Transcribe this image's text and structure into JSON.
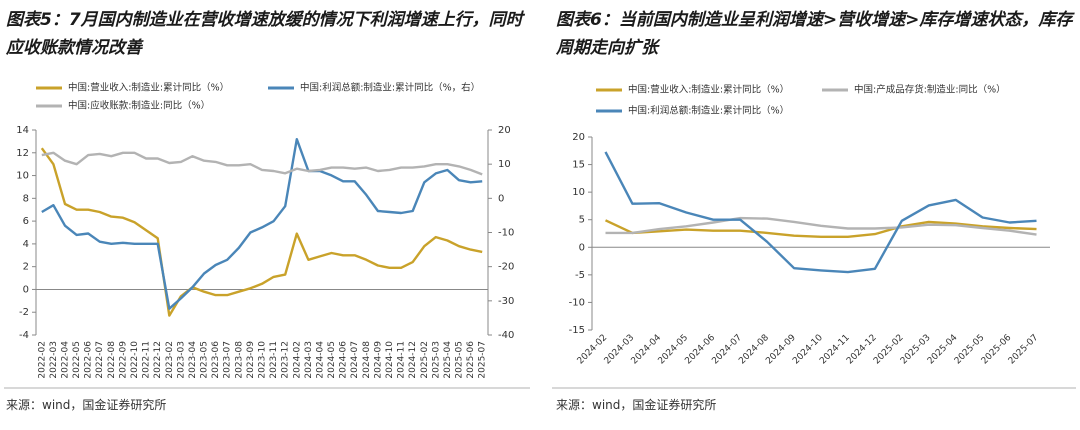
{
  "chart_data": [
    {
      "type": "line",
      "title": "图表5：7月国内制造业在营收增速放缓的情况下利润增速上行，同时应收账款情况改善",
      "source": "来源：wind，国金证券研究所",
      "categories": [
        "2022-02",
        "2022-03",
        "2022-04",
        "2022-05",
        "2022-06",
        "2022-07",
        "2022-08",
        "2022-09",
        "2022-10",
        "2022-11",
        "2022-12",
        "2023-02",
        "2023-03",
        "2023-04",
        "2023-05",
        "2023-06",
        "2023-07",
        "2023-08",
        "2023-09",
        "2023-10",
        "2023-11",
        "2023-12",
        "2024-02",
        "2024-03",
        "2024-04",
        "2024-05",
        "2024-06",
        "2024-07",
        "2024-08",
        "2024-09",
        "2024-10",
        "2024-11",
        "2024-12",
        "2025-02",
        "2025-03",
        "2025-04",
        "2025-05",
        "2025-06",
        "2025-07"
      ],
      "ylim": [
        -4,
        14
      ],
      "yticks": [
        -4,
        -2,
        0,
        2,
        4,
        6,
        8,
        10,
        12,
        14
      ],
      "y2lim": [
        -40,
        20
      ],
      "y2ticks": [
        -40,
        -30,
        -20,
        -10,
        0,
        10,
        20
      ],
      "series": [
        {
          "name": "中国:营业收入:制造业:累计同比（%）",
          "color": "#c9a22a",
          "values": [
            12.4,
            11.0,
            7.5,
            7.0,
            7.0,
            6.8,
            6.4,
            6.3,
            5.9,
            5.2,
            4.5,
            -2.3,
            -0.6,
            0.2,
            -0.2,
            -0.5,
            -0.5,
            -0.2,
            0.1,
            0.5,
            1.1,
            1.3,
            4.9,
            2.6,
            2.9,
            3.2,
            3.0,
            3.0,
            2.6,
            2.1,
            1.9,
            1.9,
            2.4,
            3.8,
            4.6,
            4.3,
            3.8,
            3.5,
            3.3
          ]
        },
        {
          "name": "中国:利润总额:制造业:累计同比（%，右）",
          "color": "#4a86b8",
          "axis": "y2",
          "values": [
            -4,
            -2,
            -8,
            -10.7,
            -10.3,
            -12.7,
            -13.3,
            -13,
            -13.3,
            -13.3,
            -13.3,
            -32.3,
            -29.3,
            -26,
            -22,
            -19.5,
            -18,
            -14.5,
            -10,
            -8.5,
            -6.7,
            -2.3,
            17.3,
            8,
            8,
            6.7,
            5,
            5,
            1,
            -3.7,
            -4,
            -4.3,
            -3.7,
            4.7,
            7.3,
            8.3,
            5.3,
            4.7,
            5
          ]
        },
        {
          "name": "中国:应收账款:制造业:同比（%）",
          "color": "#b3b3b3",
          "values": [
            11.8,
            12.0,
            11.3,
            11.0,
            11.8,
            11.9,
            11.7,
            12.0,
            12.0,
            11.5,
            11.5,
            11.1,
            11.2,
            11.7,
            11.3,
            11.2,
            10.9,
            10.9,
            11.0,
            10.5,
            10.4,
            10.2,
            10.6,
            10.4,
            10.5,
            10.7,
            10.7,
            10.6,
            10.7,
            10.4,
            10.5,
            10.7,
            10.7,
            10.8,
            11.0,
            11.0,
            10.8,
            10.5,
            10.1
          ]
        }
      ]
    },
    {
      "type": "line",
      "title": "图表6：当前国内制造业呈利润增速>营收增速>库存增速状态，库存周期走向扩张",
      "source": "来源：wind，国金证券研究所",
      "categories": [
        "2024-02",
        "2024-03",
        "2024-04",
        "2024-05",
        "2024-06",
        "2024-07",
        "2024-08",
        "2024-09",
        "2024-10",
        "2024-11",
        "2024-12",
        "2025-02",
        "2025-03",
        "2025-04",
        "2025-05",
        "2025-06",
        "2025-07"
      ],
      "ylim": [
        -15,
        20
      ],
      "yticks": [
        -15,
        -10,
        -5,
        0,
        5,
        10,
        15,
        20
      ],
      "series": [
        {
          "name": "中国:营业收入:制造业:累计同比（%）",
          "color": "#c9a22a",
          "values": [
            4.9,
            2.6,
            2.9,
            3.2,
            3.0,
            3.0,
            2.6,
            2.1,
            1.9,
            1.9,
            2.4,
            3.8,
            4.6,
            4.3,
            3.8,
            3.5,
            3.3
          ]
        },
        {
          "name": "中国:产成品存货:制造业:同比（%）",
          "color": "#b3b3b3",
          "values": [
            2.6,
            2.6,
            3.3,
            3.8,
            4.5,
            5.3,
            5.2,
            4.6,
            3.9,
            3.4,
            3.4,
            3.6,
            4.1,
            4.0,
            3.5,
            3.0,
            2.3
          ]
        },
        {
          "name": "中国:利润总额:制造业:累计同比（%）",
          "color": "#4a86b8",
          "values": [
            17.3,
            7.9,
            8.0,
            6.3,
            5.0,
            5.0,
            1.0,
            -3.8,
            -4.2,
            -4.5,
            -3.9,
            4.8,
            7.6,
            8.6,
            5.4,
            4.5,
            4.8
          ]
        }
      ]
    }
  ]
}
